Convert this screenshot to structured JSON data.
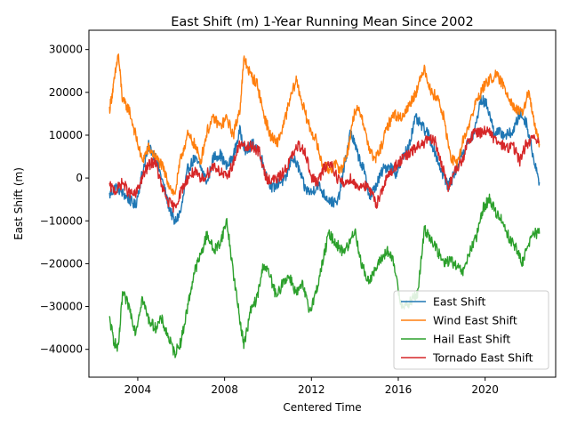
{
  "chart_data": {
    "type": "line",
    "title": "East Shift (m) 1-Year Running Mean Since 2002",
    "xlabel": "Centered Time",
    "ylabel": "East Shift (m)",
    "xlim": [
      2001.75,
      2023.25
    ],
    "ylim": [
      -46500,
      34500
    ],
    "xticks": [
      2004,
      2008,
      2012,
      2016,
      2020
    ],
    "xtick_labels": [
      "2004",
      "2008",
      "2012",
      "2016",
      "2020"
    ],
    "yticks": [
      -40000,
      -30000,
      -20000,
      -10000,
      0,
      10000,
      20000,
      30000
    ],
    "ytick_labels": [
      "−40000",
      "−30000",
      "−20000",
      "−10000",
      "0",
      "10000",
      "20000",
      "30000"
    ],
    "grid": false,
    "legend_position": "lower-right",
    "series": [
      {
        "name": "East Shift",
        "color": "#1f77b4",
        "x": [
          2002.7,
          2003.0,
          2003.3,
          2003.6,
          2003.9,
          2004.2,
          2004.5,
          2004.8,
          2005.1,
          2005.4,
          2005.7,
          2006.0,
          2006.3,
          2006.6,
          2006.9,
          2007.2,
          2007.5,
          2007.8,
          2008.1,
          2008.4,
          2008.7,
          2009.0,
          2009.3,
          2009.6,
          2009.9,
          2010.2,
          2010.5,
          2010.8,
          2011.1,
          2011.4,
          2011.7,
          2012.0,
          2012.3,
          2012.6,
          2012.9,
          2013.2,
          2013.5,
          2013.8,
          2014.1,
          2014.4,
          2014.7,
          2015.0,
          2015.3,
          2015.6,
          2015.9,
          2016.2,
          2016.5,
          2016.8,
          2017.1,
          2017.4,
          2017.7,
          2018.0,
          2018.3,
          2018.6,
          2018.9,
          2019.2,
          2019.5,
          2019.8,
          2020.1,
          2020.4,
          2020.7,
          2021.0,
          2021.3,
          2021.6,
          2021.9,
          2022.2,
          2022.5
        ],
        "y": [
          -4000,
          -2000,
          -3500,
          -5000,
          -6500,
          1000,
          7500,
          5000,
          0,
          -6000,
          -10500,
          -7500,
          2000,
          4500,
          2500,
          -1000,
          5000,
          5500,
          2500,
          5000,
          11000,
          6000,
          8000,
          6500,
          1000,
          -2500,
          -1000,
          -500,
          5000,
          2500,
          -2500,
          -3500,
          -1500,
          -4000,
          -5500,
          -6000,
          2000,
          11000,
          6000,
          2000,
          -4500,
          -1500,
          2000,
          3000,
          1000,
          4500,
          8000,
          14000,
          12000,
          10000,
          6000,
          1500,
          -2000,
          1000,
          5500,
          8000,
          10500,
          18500,
          17000,
          11000,
          10500,
          10000,
          11000,
          15000,
          13000,
          5500,
          -1000
        ]
      },
      {
        "name": "Wind East Shift",
        "color": "#ff7f0e",
        "x": [
          2002.7,
          2002.9,
          2003.1,
          2003.3,
          2003.6,
          2003.9,
          2004.2,
          2004.5,
          2004.8,
          2005.1,
          2005.4,
          2005.7,
          2006.0,
          2006.3,
          2006.6,
          2006.9,
          2007.2,
          2007.5,
          2007.8,
          2008.1,
          2008.4,
          2008.7,
          2008.9,
          2009.2,
          2009.5,
          2009.8,
          2010.1,
          2010.4,
          2010.7,
          2011.0,
          2011.3,
          2011.6,
          2011.9,
          2012.2,
          2012.5,
          2012.8,
          2013.1,
          2013.4,
          2013.7,
          2014.0,
          2014.3,
          2014.6,
          2014.9,
          2015.2,
          2015.5,
          2015.8,
          2016.1,
          2016.4,
          2016.7,
          2016.9,
          2017.2,
          2017.5,
          2017.8,
          2018.1,
          2018.4,
          2018.7,
          2019.0,
          2019.3,
          2019.6,
          2019.9,
          2020.2,
          2020.5,
          2020.8,
          2021.1,
          2021.4,
          2021.7,
          2022.0,
          2022.3,
          2022.5
        ],
        "y": [
          16000,
          22000,
          29000,
          18000,
          16000,
          10000,
          4000,
          7000,
          5000,
          3000,
          -1000,
          -4000,
          5000,
          10000,
          8000,
          4000,
          11000,
          14000,
          12000,
          14000,
          10000,
          16000,
          28000,
          24000,
          22000,
          15000,
          10000,
          8000,
          12000,
          18000,
          23000,
          17000,
          12000,
          9000,
          3000,
          2000,
          3000,
          2000,
          7000,
          16000,
          15000,
          8000,
          4000,
          7000,
          12000,
          15000,
          14000,
          16000,
          19000,
          21000,
          26000,
          20000,
          19000,
          14000,
          5000,
          3000,
          9000,
          13000,
          18000,
          21000,
          23000,
          24000,
          22000,
          19000,
          16000,
          15000,
          20000,
          12000,
          8000
        ]
      },
      {
        "name": "Hail East Shift",
        "color": "#2ca02c",
        "x": [
          2002.7,
          2002.9,
          2003.1,
          2003.3,
          2003.6,
          2003.9,
          2004.2,
          2004.5,
          2004.8,
          2005.1,
          2005.4,
          2005.7,
          2006.0,
          2006.3,
          2006.6,
          2006.9,
          2007.2,
          2007.5,
          2007.8,
          2008.1,
          2008.4,
          2008.7,
          2008.9,
          2009.2,
          2009.5,
          2009.8,
          2010.1,
          2010.4,
          2010.7,
          2011.0,
          2011.3,
          2011.6,
          2011.9,
          2012.2,
          2012.5,
          2012.8,
          2013.1,
          2013.4,
          2013.7,
          2014.0,
          2014.3,
          2014.6,
          2014.9,
          2015.2,
          2015.5,
          2015.8,
          2016.1,
          2016.4,
          2016.7,
          2016.9,
          2017.2,
          2017.5,
          2017.8,
          2018.1,
          2018.4,
          2018.7,
          2019.0,
          2019.3,
          2019.6,
          2019.9,
          2020.2,
          2020.5,
          2020.8,
          2021.1,
          2021.4,
          2021.7,
          2022.0,
          2022.3,
          2022.5
        ],
        "y": [
          -33000,
          -38000,
          -40000,
          -27000,
          -30000,
          -36000,
          -28000,
          -33000,
          -35000,
          -33000,
          -37000,
          -41000,
          -38000,
          -30000,
          -22000,
          -18000,
          -13000,
          -17000,
          -15000,
          -10000,
          -22000,
          -33000,
          -39000,
          -31000,
          -28000,
          -20000,
          -23000,
          -28000,
          -24000,
          -23000,
          -27000,
          -25000,
          -31000,
          -27000,
          -20000,
          -13000,
          -15000,
          -17000,
          -16000,
          -12000,
          -20000,
          -24000,
          -22000,
          -19000,
          -17000,
          -20000,
          -29000,
          -30000,
          -28000,
          -27000,
          -12000,
          -14000,
          -17000,
          -20000,
          -19000,
          -21000,
          -22000,
          -17000,
          -14000,
          -7000,
          -5000,
          -8000,
          -10000,
          -14000,
          -16000,
          -20000,
          -15000,
          -13000,
          -13000
        ]
      },
      {
        "name": "Tornado East Shift",
        "color": "#d62728",
        "x": [
          2002.7,
          2003.0,
          2003.3,
          2003.6,
          2003.9,
          2004.2,
          2004.5,
          2004.8,
          2005.1,
          2005.4,
          2005.7,
          2006.0,
          2006.3,
          2006.6,
          2006.9,
          2007.2,
          2007.5,
          2007.8,
          2008.1,
          2008.4,
          2008.7,
          2009.0,
          2009.3,
          2009.6,
          2009.9,
          2010.2,
          2010.5,
          2010.8,
          2011.1,
          2011.4,
          2011.7,
          2012.0,
          2012.3,
          2012.6,
          2012.9,
          2013.2,
          2013.5,
          2013.8,
          2014.1,
          2014.4,
          2014.7,
          2015.0,
          2015.3,
          2015.6,
          2015.9,
          2016.2,
          2016.5,
          2016.8,
          2017.1,
          2017.4,
          2017.7,
          2018.0,
          2018.3,
          2018.6,
          2018.9,
          2019.2,
          2019.5,
          2019.8,
          2020.1,
          2020.4,
          2020.7,
          2021.0,
          2021.3,
          2021.6,
          2021.9,
          2022.2,
          2022.5
        ],
        "y": [
          -2000,
          -3000,
          -1000,
          -3500,
          -4000,
          0,
          3000,
          4000,
          -2000,
          -5500,
          -7000,
          -3000,
          0,
          1500,
          -500,
          1000,
          3000,
          1500,
          0,
          3500,
          8000,
          7000,
          7500,
          6000,
          0,
          -500,
          0,
          2000,
          5000,
          7500,
          6500,
          0,
          -1000,
          2500,
          3500,
          0,
          -1500,
          0,
          -2000,
          -1500,
          -3000,
          -6000,
          -2000,
          1000,
          3000,
          4500,
          5500,
          7000,
          8000,
          9000,
          8500,
          3000,
          -2000,
          1500,
          3500,
          8000,
          11000,
          10500,
          11500,
          9000,
          8000,
          7000,
          7500,
          4000,
          8000,
          9000,
          8500
        ]
      }
    ]
  }
}
